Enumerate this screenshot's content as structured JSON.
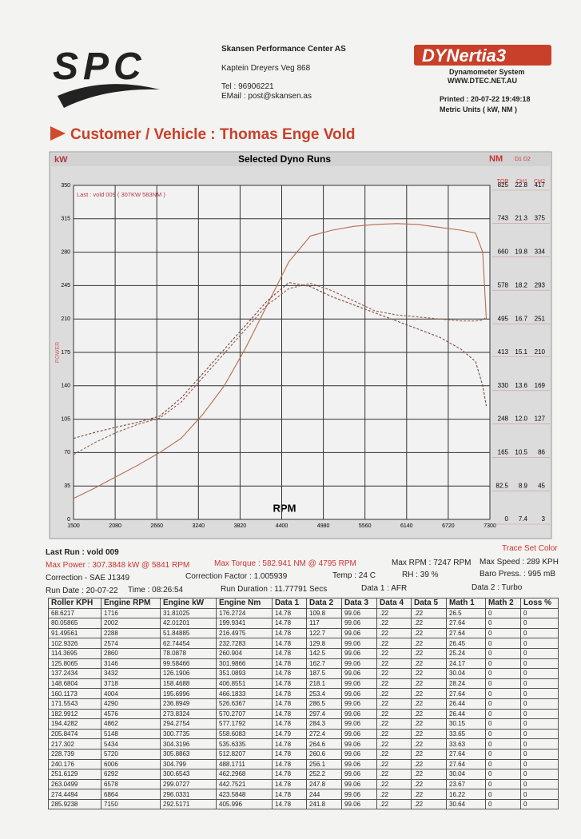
{
  "header": {
    "logo_text": "SPC",
    "company": "Skansen Performance Center AS",
    "address": "Kaptein Dreyers Veg 868",
    "phone": "Tel : 96906221",
    "email": "EMail : post@skansen.as",
    "brand": "DYNertia3",
    "brand_sub": "Dynamometer System",
    "brand_url": "WWW.DTEC.NET.AU",
    "printed": "Printed : 20-07-22 19:49:18",
    "units": "Metric Units ( kW, NM )"
  },
  "customer": "Customer / Vehicle : Thomas Enge Vold",
  "chart_data": {
    "type": "line",
    "title": "Selected Dyno Runs",
    "y_label": "kW",
    "y2_label": "NM",
    "channels_label": "D1 D2",
    "axis_title": "POWER",
    "x_label": "RPM",
    "annotation": "Last : vold 009 ( 307KW 583NM )",
    "grid": true,
    "xlim": [
      1500,
      7300
    ],
    "xticks": [
      1500,
      2080,
      2660,
      3240,
      3820,
      4400,
      4980,
      5560,
      6140,
      6720,
      7300
    ],
    "ylim": [
      0,
      350
    ],
    "yticks": [
      0,
      35,
      70,
      105,
      140,
      175,
      210,
      245,
      280,
      315,
      350
    ],
    "y2lim": [
      0,
      825
    ],
    "y2ticks": [
      0,
      82.5,
      165,
      248,
      330,
      413,
      495,
      578,
      660,
      743,
      825
    ],
    "right_headers": [
      "TQR",
      "CH1",
      "CH2"
    ],
    "ch1_ticks": [
      "7.4",
      "8.9",
      "10.5",
      "12.0",
      "13.6",
      "15.1",
      "16.7",
      "18.2",
      "19.8",
      "21.3",
      "22.8"
    ],
    "ch2_ticks": [
      "3",
      "45",
      "86",
      "127",
      "169",
      "210",
      "251",
      "293",
      "334",
      "375",
      "417"
    ],
    "x": [
      1500,
      1800,
      2100,
      2400,
      2700,
      3000,
      3300,
      3600,
      3900,
      4200,
      4500,
      4800,
      5100,
      5400,
      5700,
      6000,
      6300,
      6600,
      6900,
      7100,
      7200,
      7250
    ],
    "series": [
      {
        "color": "#b86a4e",
        "style": "solid",
        "values": [
          22,
          33,
          45,
          57,
          70,
          85,
          110,
          140,
          180,
          225,
          270,
          297,
          303,
          307,
          309,
          310,
          309,
          306,
          303,
          300,
          280,
          210
        ]
      },
      {
        "color": "#9a5a48",
        "style": "dashed",
        "axis": "y2",
        "values": [
          160,
          190,
          215,
          235,
          250,
          290,
          350,
          410,
          470,
          530,
          570,
          583,
          565,
          540,
          515,
          505,
          500,
          495,
          490,
          490,
          492,
          500
        ]
      },
      {
        "color": "#7a4a40",
        "style": "dashed",
        "axis": "y2",
        "values": [
          200,
          215,
          228,
          240,
          255,
          300,
          360,
          420,
          480,
          540,
          585,
          575,
          550,
          530,
          510,
          490,
          470,
          450,
          420,
          390,
          330,
          280
        ]
      }
    ]
  },
  "summary": {
    "last_run": "Last Run : vold 009",
    "trace": "Trace Set Color",
    "max_power": "Max Power : 307.3848 kW @ 5841 RPM",
    "max_torque": "Max Torque : 582.941 NM @ 4795 RPM",
    "max_rpm": "Max RPM : 7247 RPM",
    "max_speed": "Max Speed : 289 KPH",
    "correction": "Correction - SAE J1349",
    "factor": "Correction Factor : 1.005939",
    "temp": "Temp : 24 C",
    "rh": "RH : 39 %",
    "baro": "Baro Press. : 995 mB",
    "run_date": "Run Date : 20-07-22",
    "time": "Time : 08:26:54",
    "duration": "Run Duration : 11.77791 Secs",
    "data1": "Data 1 : AFR",
    "data2": "Data 2 : Turbo"
  },
  "table": {
    "columns": [
      "Roller KPH",
      "Engine RPM",
      "Engine kW",
      "Engine Nm",
      "Data 1",
      "Data 2",
      "Data 3",
      "Data 4",
      "Data 5",
      "Math 1",
      "Math 2",
      "Loss %"
    ],
    "rows": [
      [
        "68.6217",
        "1716",
        "31.81025",
        "176.2724",
        "14.78",
        "109.8",
        "99.06",
        ".22",
        ".22",
        "26.5",
        "0",
        "0"
      ],
      [
        "80.05865",
        "2002",
        "42.01201",
        "199.9341",
        "14.78",
        "117",
        "99.06",
        ".22",
        ".22",
        "27.64",
        "0",
        "0"
      ],
      [
        "91.49561",
        "2288",
        "51.84885",
        "216.4975",
        "14.78",
        "122.7",
        "99.06",
        ".22",
        ".22",
        "27.64",
        "0",
        "0"
      ],
      [
        "102.9326",
        "2574",
        "62.74454",
        "232.7283",
        "14.78",
        "129.8",
        "99.06",
        ".22",
        ".22",
        "26.45",
        "0",
        "0"
      ],
      [
        "114.3695",
        "2860",
        "78.0878",
        "260.904",
        "14.78",
        "142.5",
        "99.06",
        ".22",
        ".22",
        "25.24",
        "0",
        "0"
      ],
      [
        "125.8065",
        "3146",
        "99.58466",
        "301.9866",
        "14.78",
        "162.7",
        "99.06",
        ".22",
        ".22",
        "24.17",
        "0",
        "0"
      ],
      [
        "137.2434",
        "3432",
        "126.1906",
        "351.0893",
        "14.78",
        "187.5",
        "99.06",
        ".22",
        ".22",
        "30.04",
        "0",
        "0"
      ],
      [
        "148.6804",
        "3718",
        "158.4688",
        "406.8551",
        "14.78",
        "218.1",
        "99.06",
        ".22",
        ".22",
        "28.24",
        "0",
        "0"
      ],
      [
        "160.1173",
        "4004",
        "195.6996",
        "466.1833",
        "14.78",
        "253.4",
        "99.06",
        ".22",
        ".22",
        "27.64",
        "0",
        "0"
      ],
      [
        "171.5543",
        "4290",
        "236.8949",
        "526.6367",
        "14.78",
        "286.5",
        "99.06",
        ".22",
        ".22",
        "26.44",
        "0",
        "0"
      ],
      [
        "182.9912",
        "4576",
        "273.8324",
        "570.2707",
        "14.78",
        "297.4",
        "99.06",
        ".22",
        ".22",
        "26.44",
        "0",
        "0"
      ],
      [
        "194.4282",
        "4862",
        "294.2754",
        "577.1792",
        "14.78",
        "284.3",
        "99.06",
        ".22",
        ".22",
        "30.15",
        "0",
        "0"
      ],
      [
        "205.8474",
        "5148",
        "300.7735",
        "558.6083",
        "14.79",
        "272.4",
        "99.06",
        ".22",
        ".22",
        "33.65",
        "0",
        "0"
      ],
      [
        "217.302",
        "5434",
        "304.3196",
        "535.6335",
        "14.78",
        "264.6",
        "99.06",
        ".22",
        ".22",
        "33.63",
        "0",
        "0"
      ],
      [
        "228.739",
        "5720",
        "305.8863",
        "512.8207",
        "14.78",
        "260.6",
        "99.06",
        ".22",
        ".22",
        "27.64",
        "0",
        "0"
      ],
      [
        "240.176",
        "6006",
        "304.799",
        "488.1711",
        "14.78",
        "256.1",
        "99.06",
        ".22",
        ".22",
        "27.64",
        "0",
        "0"
      ],
      [
        "251.6129",
        "6292",
        "300.6543",
        "462.2968",
        "14.78",
        "252.2",
        "99.06",
        ".22",
        ".22",
        "30.04",
        "0",
        "0"
      ],
      [
        "263.0499",
        "6578",
        "299.0727",
        "442.7521",
        "14.78",
        "247.8",
        "99.06",
        ".22",
        ".22",
        "23.67",
        "0",
        "0"
      ],
      [
        "274.4494",
        "6864",
        "296.0331",
        "423.5848",
        "14.78",
        "244",
        "99.06",
        ".22",
        ".22",
        "16.22",
        "0",
        "0"
      ],
      [
        "285.9238",
        "7150",
        "292.5171",
        "405.996",
        "14.78",
        "241.8",
        "99.06",
        ".22",
        ".22",
        "30.64",
        "0",
        "0"
      ]
    ]
  }
}
